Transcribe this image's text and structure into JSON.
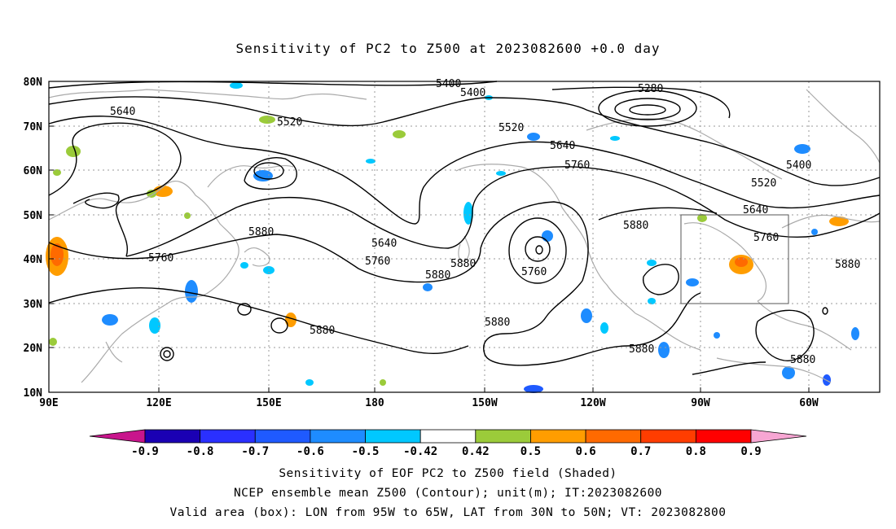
{
  "title": "Sensitivity of PC2 to Z500 at 2023082600 +0.0 day",
  "map": {
    "lat_labels": [
      "80N",
      "70N",
      "60N",
      "50N",
      "40N",
      "30N",
      "20N",
      "10N"
    ],
    "lon_labels": [
      "90E",
      "120E",
      "150E",
      "180",
      "150W",
      "120W",
      "90W",
      "60W"
    ],
    "valid_box": {
      "lon_from": "95W",
      "lon_to": "65W",
      "lat_from": "30N",
      "lat_to": "50N"
    },
    "contour_labels": [
      "5400",
      "5400",
      "5280",
      "5640",
      "5520",
      "5520",
      "5640",
      "5760",
      "5400",
      "5520",
      "5640",
      "5760",
      "5880",
      "5880",
      "5640",
      "5760",
      "5880",
      "5880",
      "5760",
      "5880",
      "5880",
      "5880",
      "5760",
      "5880",
      "5880"
    ],
    "colors": {
      "coast": "#aaaaaa",
      "contour": "#000000",
      "grid": "#999999"
    }
  },
  "colorbar": {
    "labels": [
      "-0.9",
      "-0.8",
      "-0.7",
      "-0.6",
      "-0.5",
      "-0.42",
      "0.42",
      "0.5",
      "0.6",
      "0.7",
      "0.8",
      "0.9"
    ],
    "colors": [
      "#1a00b3",
      "#2a30ff",
      "#1f5aff",
      "#1e8cff",
      "#00c8ff",
      "#ffffff",
      "#9bcb3a",
      "#ff9d00",
      "#ff6a00",
      "#ff3d00",
      "#ff0000"
    ],
    "under_color": "#c8158c",
    "over_color": "#f7a6d3"
  },
  "caption": {
    "line1": "Sensitivity of EOF PC2 to Z500 field (Shaded)",
    "line2": "NCEP ensemble mean Z500 (Contour); unit(m); IT:2023082600",
    "line3": "Valid area (box): LON from 95W to 65W, LAT from 30N to 50N; VT: 2023082800"
  }
}
